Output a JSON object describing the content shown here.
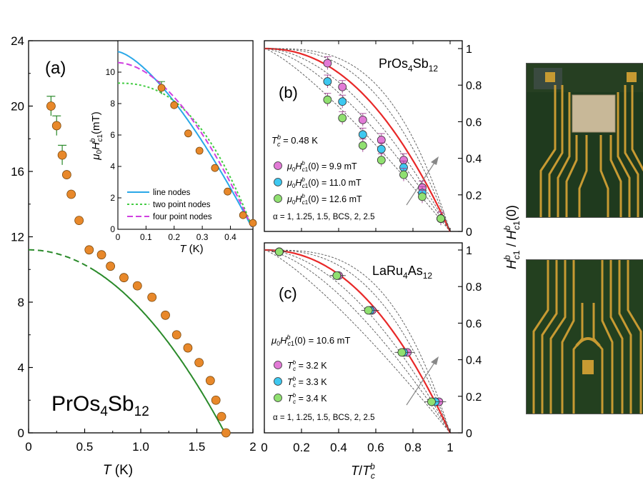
{
  "figure": {
    "panel_a": {
      "label": "(a)",
      "compound_main": "PrOs",
      "compound_sub1": "4",
      "compound_mid": "Sb",
      "compound_sub2": "12",
      "xlabel": "T (K)",
      "y_ticks": [
        "0",
        "4",
        "8",
        "12",
        "16",
        "20",
        "24"
      ],
      "x_ticks": [
        "0",
        "0.5",
        "1.0",
        "1.5",
        "2"
      ]
    },
    "inset": {
      "ylabel": "μ0Hbc1(mT)",
      "xlabel": "T (K)",
      "y_ticks": [
        "0",
        "2",
        "4",
        "6",
        "8",
        "10"
      ],
      "x_ticks": [
        "0",
        "0.1",
        "0.2",
        "0.3",
        "0.4"
      ],
      "legend": [
        "line nodes",
        "two point nodes",
        "four point nodes"
      ]
    },
    "panel_b": {
      "label": "(b)",
      "title": "PrOs4Sb12",
      "tc_text": "Tbc = 0.48 K",
      "legend": [
        "μ0Hbc1(0) = 9.9 mT",
        "μ0Hbc1(0) = 11.0 mT",
        "μ0Hbc1(0) = 12.6 mT"
      ],
      "alpha_text": "α = 1, 1.25, 1.5, BCS, 2, 2.5"
    },
    "panel_c": {
      "label": "(c)",
      "title": "LaRu4As12",
      "h_text": "μ0Hbc1(0) = 10.6 mT",
      "legend": [
        "Tbc = 3.2 K",
        "Tbc = 3.3 K",
        "Tbc = 3.4 K"
      ],
      "alpha_text": "α = 1, 1.25, 1.5, BCS, 2, 2.5",
      "xlabel": "T/Tbc",
      "x_ticks": [
        "0",
        "0.2",
        "0.4",
        "0.6",
        "0.8",
        "1"
      ]
    },
    "right_axis": {
      "ylabel": "Hbc1 / Hbc1(0)",
      "ticks": [
        "0",
        "0.2",
        "0.4",
        "0.6",
        "0.8",
        "1"
      ]
    }
  },
  "chart_data": [
    {
      "type": "scatter",
      "panel": "a",
      "xlim": [
        0,
        2
      ],
      "ylim": [
        0,
        24
      ],
      "series": [
        {
          "x": [
            0.2,
            0.25,
            0.3,
            0.34,
            0.38,
            0.45,
            0.54,
            0.65,
            0.73,
            0.85,
            0.97,
            1.1,
            1.22,
            1.32,
            1.42,
            1.52,
            1.62,
            1.67,
            1.72,
            1.76
          ],
          "y": [
            20.0,
            18.8,
            17.0,
            15.8,
            14.6,
            13.0,
            11.2,
            10.9,
            10.2,
            9.5,
            9.0,
            8.3,
            7.2,
            6.0,
            5.2,
            4.3,
            3.2,
            2.0,
            1.0,
            0.0
          ]
        }
      ],
      "fit_curve": {
        "h0": 11.2,
        "tc": 1.75
      }
    },
    {
      "type": "scatter",
      "panel": "a-inset",
      "xlim": [
        0,
        0.48
      ],
      "ylim": [
        0,
        12
      ],
      "series": [
        {
          "x": [
            0.155,
            0.2,
            0.25,
            0.29,
            0.345,
            0.39,
            0.445,
            0.48
          ],
          "y": [
            9.0,
            7.9,
            6.1,
            5.0,
            3.9,
            2.4,
            0.9,
            0.4
          ]
        }
      ]
    },
    {
      "type": "scatter",
      "panel": "b",
      "xlim": [
        0,
        1
      ],
      "ylim": [
        0,
        1
      ],
      "series": [
        {
          "x": [
            0.34,
            0.42,
            0.53,
            0.63,
            0.75,
            0.85,
            0.95
          ],
          "y": [
            0.92,
            0.79,
            0.61,
            0.5,
            0.39,
            0.24,
            0.07
          ]
        },
        {
          "x": [
            0.34,
            0.42,
            0.53,
            0.63,
            0.75,
            0.85,
            0.95
          ],
          "y": [
            0.82,
            0.71,
            0.53,
            0.45,
            0.35,
            0.21,
            0.07
          ]
        },
        {
          "x": [
            0.34,
            0.42,
            0.53,
            0.63,
            0.75,
            0.85,
            0.95
          ],
          "y": [
            0.72,
            0.62,
            0.47,
            0.39,
            0.31,
            0.19,
            0.07
          ]
        }
      ]
    },
    {
      "type": "scatter",
      "panel": "c",
      "xlim": [
        0,
        1
      ],
      "ylim": [
        0,
        1
      ],
      "series": [
        {
          "x": [
            0.08,
            0.4,
            0.58,
            0.77,
            0.94
          ],
          "y": [
            0.99,
            0.86,
            0.67,
            0.44,
            0.17
          ]
        },
        {
          "x": [
            0.08,
            0.39,
            0.57,
            0.75,
            0.92
          ],
          "y": [
            0.99,
            0.86,
            0.67,
            0.44,
            0.17
          ]
        },
        {
          "x": [
            0.08,
            0.39,
            0.56,
            0.74,
            0.9
          ],
          "y": [
            0.99,
            0.86,
            0.67,
            0.44,
            0.17
          ]
        }
      ]
    }
  ],
  "colors": {
    "orange_marker": "#e8882a",
    "green_line": "#2a8a2a",
    "pink": "#e27ad6",
    "cyan": "#3ec8f0",
    "light_green": "#90e070",
    "red_line": "#e82828",
    "blue_line": "#2aa8e8",
    "green_dotted": "#44cc44",
    "magenta_dashed": "#d040e0"
  },
  "photos": [
    "pcb-photo-top",
    "pcb-photo-bottom"
  ]
}
